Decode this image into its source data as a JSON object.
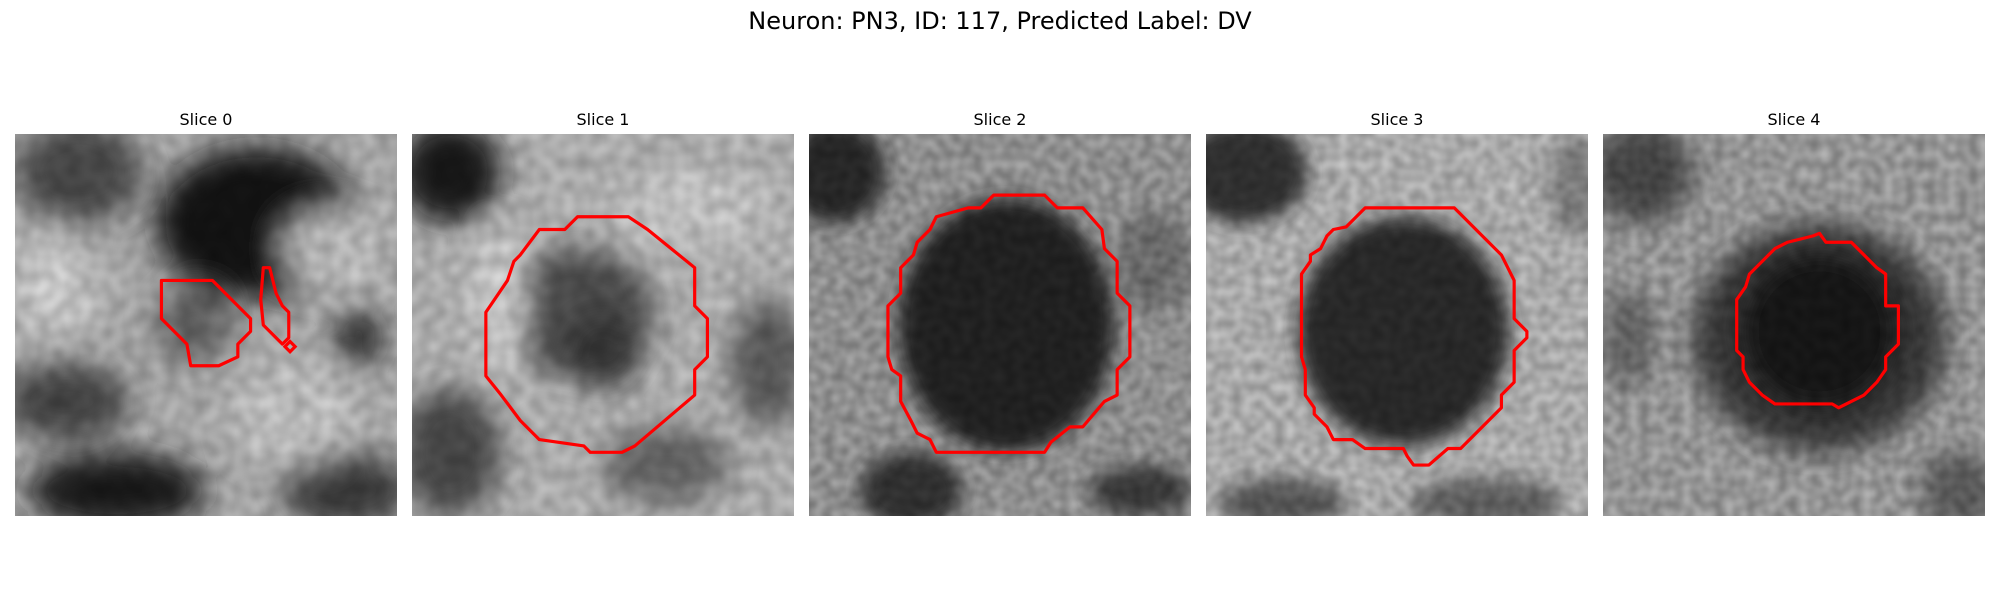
{
  "figure": {
    "title": "Neuron: PN3, ID: 117, Predicted Label: DV",
    "panels": [
      {
        "title": "Slice 0"
      },
      {
        "title": "Slice 1"
      },
      {
        "title": "Slice 2"
      },
      {
        "title": "Slice 3"
      },
      {
        "title": "Slice 4"
      }
    ],
    "contour_color": "#ff0000",
    "colormap": "grayscale"
  }
}
